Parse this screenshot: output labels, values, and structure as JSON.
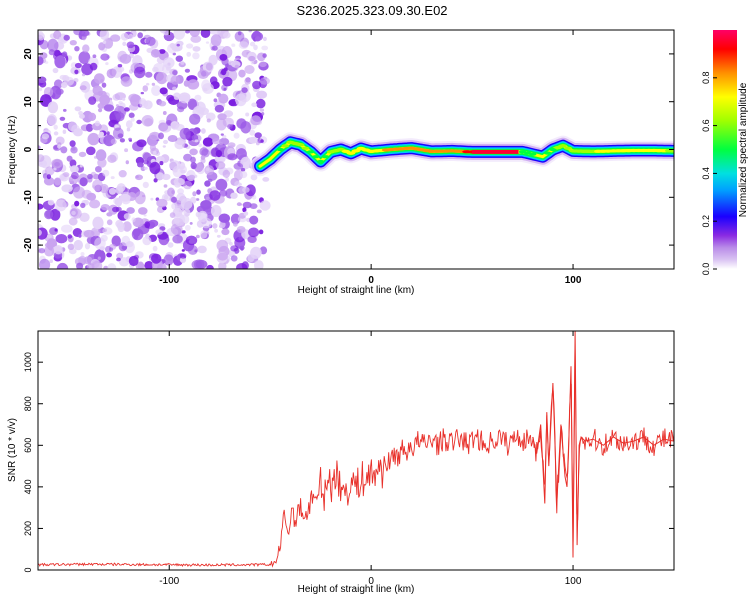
{
  "figure_title": "S236.2025.323.09.30.E02",
  "chart_data": [
    {
      "type": "heatmap",
      "title": "S236.2025.323.09.30.E02",
      "xlabel": "Height of straight line (km)",
      "ylabel": "Frequency (Hz)",
      "xlim": [
        -165,
        150
      ],
      "ylim": [
        -25,
        25
      ],
      "xticks": [
        -100,
        0,
        100
      ],
      "xtick_labels": [
        "-100",
        "0",
        "100"
      ],
      "yticks": [
        -20,
        -10,
        0,
        10,
        20
      ],
      "ytick_labels": [
        "-20",
        "-10",
        "0",
        "10",
        "20"
      ],
      "colorbar": {
        "label": "Normalized spectral amplitude",
        "range": [
          0,
          1
        ],
        "ticks": [
          0.0,
          0.2,
          0.4,
          0.6,
          0.8
        ],
        "tick_labels": [
          "0.0",
          "0.2",
          "0.4",
          "0.6",
          "0.8"
        ],
        "colors": [
          "#ffffff",
          "#b98be8",
          "#8a2be2",
          "#0000ff",
          "#00c8ff",
          "#00ff00",
          "#ffff00",
          "#ff8000",
          "#ff0000",
          "#ff0066"
        ]
      },
      "noise_region_x": [
        -165,
        -55
      ],
      "signal_ridge": {
        "x": [
          -55,
          -50,
          -45,
          -40,
          -35,
          -30,
          -25,
          -20,
          -15,
          -10,
          -5,
          0,
          10,
          20,
          30,
          40,
          50,
          60,
          70,
          75,
          80,
          85,
          90,
          95,
          100,
          110,
          120,
          130,
          140,
          150
        ],
        "frequency": [
          -3.5,
          -2,
          0,
          1.5,
          1,
          -0.5,
          -2.5,
          -0.5,
          0,
          -0.8,
          0.2,
          -0.4,
          0,
          0.3,
          -0.4,
          -0.3,
          -0.5,
          -0.5,
          -0.5,
          -0.5,
          -1,
          -1.5,
          0,
          0.8,
          -0.3,
          -0.4,
          -0.3,
          -0.2,
          -0.2,
          -0.3
        ],
        "amplitude": [
          0.3,
          0.45,
          0.6,
          0.7,
          0.65,
          0.6,
          0.55,
          0.65,
          0.7,
          0.75,
          0.8,
          0.75,
          0.85,
          0.9,
          0.85,
          0.85,
          0.95,
          1.0,
          0.9,
          0.6,
          0.55,
          0.5,
          0.6,
          0.7,
          0.65,
          0.7,
          0.8,
          0.8,
          0.75,
          0.7
        ]
      }
    },
    {
      "type": "line",
      "title": "",
      "xlabel": "Height of straight line (km)",
      "ylabel": "SNR (10 * v/v)",
      "xlim": [
        -165,
        150
      ],
      "ylim": [
        0,
        1150
      ],
      "xticks": [
        -100,
        0,
        100
      ],
      "xtick_labels": [
        "-100",
        "0",
        "100"
      ],
      "yticks": [
        0,
        200,
        400,
        600,
        800,
        1000
      ],
      "ytick_labels": [
        "0",
        "200",
        "400",
        "600",
        "800",
        "1000"
      ],
      "series": [
        {
          "name": "SNR",
          "color": "#e8302a",
          "x": [
            -165,
            -140,
            -110,
            -80,
            -60,
            -50,
            -47,
            -45,
            -43,
            -41,
            -39,
            -37,
            -35,
            -33,
            -31,
            -29,
            -27,
            -25,
            -23,
            -21,
            -19,
            -17,
            -15,
            -13,
            -11,
            -9,
            -7,
            -5,
            -3,
            -1,
            1,
            3,
            5,
            7,
            9,
            11,
            13,
            15,
            17,
            19,
            21,
            23,
            25,
            27,
            30,
            33,
            36,
            40,
            44,
            48,
            52,
            56,
            60,
            64,
            68,
            72,
            76,
            80,
            82,
            84,
            86,
            87,
            88,
            90,
            92,
            94,
            96,
            97,
            98,
            99,
            100,
            101,
            102,
            103,
            104,
            106,
            110,
            115,
            120,
            125,
            130,
            135,
            140,
            145,
            150
          ],
          "y": [
            25,
            28,
            26,
            24,
            25,
            26,
            40,
            120,
            260,
            180,
            300,
            220,
            330,
            250,
            280,
            380,
            300,
            420,
            350,
            460,
            380,
            520,
            350,
            410,
            380,
            430,
            400,
            450,
            420,
            470,
            440,
            500,
            470,
            530,
            510,
            560,
            540,
            580,
            560,
            600,
            590,
            620,
            610,
            600,
            640,
            600,
            630,
            610,
            640,
            600,
            650,
            600,
            620,
            640,
            600,
            650,
            620,
            640,
            560,
            700,
            320,
            760,
            500,
            900,
            330,
            700,
            450,
            400,
            650,
            980,
            60,
            1150,
            120,
            600,
            640,
            620,
            630,
            600,
            640,
            610,
            620,
            640,
            600,
            630,
            620
          ]
        }
      ]
    }
  ]
}
